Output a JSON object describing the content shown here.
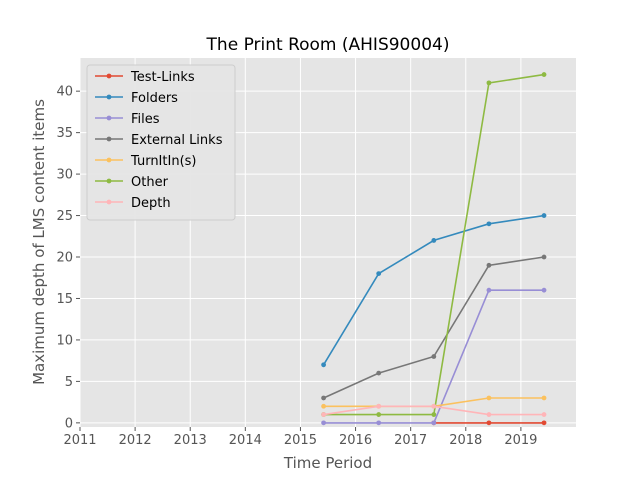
{
  "chart_data": {
    "type": "line",
    "title": "The Print Room (AHIS90004)",
    "xlabel": "Time Period",
    "ylabel": "Maximum depth of LMS content items",
    "xlim": [
      2011,
      2020
    ],
    "ylim": [
      -0.5,
      44
    ],
    "xticks": [
      "2011",
      "2012",
      "2013",
      "2014",
      "2015",
      "2016",
      "2017",
      "2018",
      "2019"
    ],
    "xtick_values": [
      2011,
      2012,
      2013,
      2014,
      2015,
      2016,
      2017,
      2018,
      2019
    ],
    "yticks": [
      "0",
      "5",
      "10",
      "15",
      "20",
      "25",
      "30",
      "35",
      "40"
    ],
    "ytick_values": [
      0,
      5,
      10,
      15,
      20,
      25,
      30,
      35,
      40
    ],
    "grid": true,
    "style": "ggplot",
    "legend_position": "upper-left",
    "series": [
      {
        "name": "Test-Links",
        "color": "#E24A33",
        "x": [
          2017.42,
          2018.42,
          2019.42
        ],
        "values": [
          0,
          0,
          0
        ]
      },
      {
        "name": "Folders",
        "color": "#348ABD",
        "x": [
          2015.42,
          2016.42,
          2017.42,
          2018.42,
          2019.42
        ],
        "values": [
          7,
          18,
          22,
          24,
          25
        ]
      },
      {
        "name": "Files",
        "color": "#988ED5",
        "x": [
          2015.42,
          2016.42,
          2017.42,
          2018.42,
          2019.42
        ],
        "values": [
          0,
          0,
          0,
          16,
          16
        ]
      },
      {
        "name": "External Links",
        "color": "#777777",
        "x": [
          2015.42,
          2016.42,
          2017.42,
          2018.42,
          2019.42
        ],
        "values": [
          3,
          6,
          8,
          19,
          20
        ]
      },
      {
        "name": "TurnItIn(s)",
        "color": "#FBC15E",
        "x": [
          2015.42,
          2016.42,
          2017.42,
          2018.42,
          2019.42
        ],
        "values": [
          2,
          2,
          2,
          3,
          3
        ]
      },
      {
        "name": "Other",
        "color": "#8EBA42",
        "x": [
          2015.42,
          2016.42,
          2017.42,
          2018.42,
          2019.42
        ],
        "values": [
          1,
          1,
          1,
          41,
          42
        ]
      },
      {
        "name": "Depth",
        "color": "#FFB5B8",
        "x": [
          2015.42,
          2016.42,
          2017.42,
          2018.42,
          2019.42
        ],
        "values": [
          1,
          2,
          2,
          1,
          1
        ]
      }
    ]
  }
}
